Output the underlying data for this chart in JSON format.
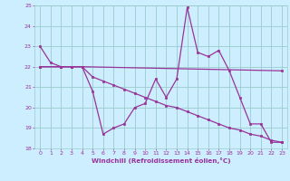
{
  "background_color": "#cceeff",
  "grid_color": "#99cccc",
  "line_color": "#993399",
  "xlabel": "Windchill (Refroidissement éolien,°C)",
  "xlim": [
    -0.5,
    23.5
  ],
  "ylim": [
    18,
    25
  ],
  "yticks": [
    18,
    19,
    20,
    21,
    22,
    23,
    24,
    25
  ],
  "xticks": [
    0,
    1,
    2,
    3,
    4,
    5,
    6,
    7,
    8,
    9,
    10,
    11,
    12,
    13,
    14,
    15,
    16,
    17,
    18,
    19,
    20,
    21,
    22,
    23
  ],
  "series1_x": [
    0,
    1,
    2,
    3,
    4,
    5,
    6,
    7,
    8,
    9,
    10,
    11,
    12,
    13,
    14,
    15,
    16,
    17,
    18,
    19,
    20,
    21,
    22,
    23
  ],
  "series1_y": [
    23.0,
    22.2,
    22.0,
    22.0,
    22.0,
    20.8,
    18.7,
    19.0,
    19.2,
    20.0,
    20.2,
    21.4,
    20.5,
    21.4,
    24.9,
    22.7,
    22.5,
    22.8,
    21.8,
    20.5,
    19.2,
    19.2,
    18.3,
    18.3
  ],
  "series2_x": [
    0,
    2,
    3,
    4,
    23
  ],
  "series2_y": [
    22.0,
    22.0,
    22.0,
    22.0,
    21.8
  ],
  "series3_x": [
    0,
    2,
    3,
    4,
    5,
    6,
    7,
    8,
    9,
    10,
    11,
    12,
    13,
    14,
    15,
    16,
    17,
    18,
    19,
    20,
    21,
    22,
    23
  ],
  "series3_y": [
    22.0,
    22.0,
    22.0,
    22.0,
    21.5,
    21.3,
    21.1,
    20.9,
    20.7,
    20.5,
    20.3,
    20.1,
    20.0,
    19.8,
    19.6,
    19.4,
    19.2,
    19.0,
    18.9,
    18.7,
    18.6,
    18.4,
    18.3
  ]
}
